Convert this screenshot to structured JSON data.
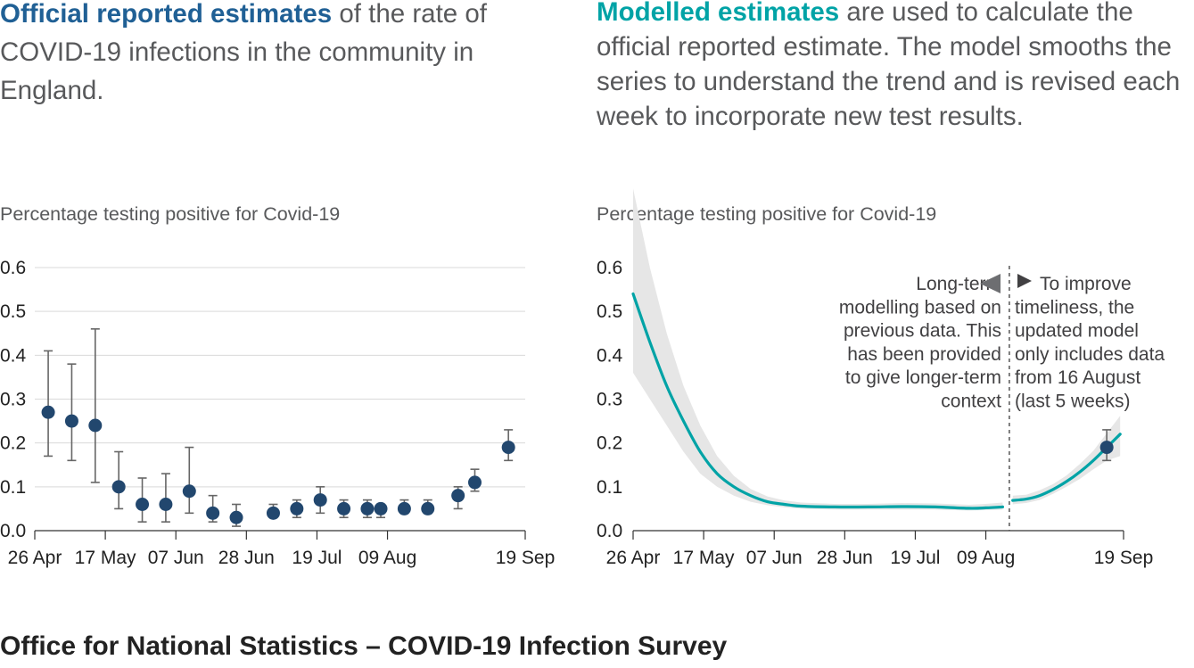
{
  "left_panel": {
    "title_lead": "Official reported estimates",
    "title_rest": " of the rate of COVID-19 infections in the community in England."
  },
  "right_panel": {
    "title_lead": "Modelled estimates",
    "title_rest": " are used to calculate the official reported estimate. The model smooths the series to understand the trend and is revised each week to incorporate new test results."
  },
  "footer": "Office for National Statistics – COVID-19 Infection Survey",
  "colors": {
    "official_blue": "#206095",
    "model_teal": "#00a3a6",
    "point_navy": "#22476e",
    "ci_grey": "#e6e6e6",
    "whisker": "#666666",
    "grid": "#d9d9d9"
  },
  "annotations": {
    "left_text": [
      "Long-term",
      "modelling based on",
      "previous data. This",
      "has been provided",
      "to give longer-term",
      "context"
    ],
    "right_text": [
      "To improve",
      "timeliness, the",
      "updated model",
      "only includes data",
      "from 16 August",
      "(last 5 weeks)"
    ],
    "left_arrow_icon": "triangle-left",
    "right_arrow_icon": "triangle-right"
  },
  "chart_data": [
    {
      "type": "scatter",
      "title": "",
      "ylabel": "Percentage testing positive for Covid-19",
      "xlabel": "",
      "ylim": [
        0,
        0.6
      ],
      "yticks": [
        0.0,
        0.1,
        0.2,
        0.3,
        0.4,
        0.5,
        0.6
      ],
      "xticks": [
        {
          "label": "26 Apr",
          "day": 0
        },
        {
          "label": "17 May",
          "day": 21
        },
        {
          "label": "07 Jun",
          "day": 42
        },
        {
          "label": "28 Jun",
          "day": 63
        },
        {
          "label": "19 Jul",
          "day": 84
        },
        {
          "label": "09 Aug",
          "day": 105
        },
        {
          "label": "19 Sep",
          "day": 146
        }
      ],
      "grid": true,
      "series": [
        {
          "points": [
            {
              "day": 4,
              "y": 0.27,
              "lo": 0.17,
              "hi": 0.41
            },
            {
              "day": 11,
              "y": 0.25,
              "lo": 0.16,
              "hi": 0.38
            },
            {
              "day": 18,
              "y": 0.24,
              "lo": 0.11,
              "hi": 0.46
            },
            {
              "day": 25,
              "y": 0.1,
              "lo": 0.05,
              "hi": 0.18
            },
            {
              "day": 32,
              "y": 0.06,
              "lo": 0.02,
              "hi": 0.12
            },
            {
              "day": 39,
              "y": 0.06,
              "lo": 0.02,
              "hi": 0.13
            },
            {
              "day": 46,
              "y": 0.09,
              "lo": 0.04,
              "hi": 0.19
            },
            {
              "day": 53,
              "y": 0.04,
              "lo": 0.02,
              "hi": 0.08
            },
            {
              "day": 60,
              "y": 0.03,
              "lo": 0.01,
              "hi": 0.06
            },
            {
              "day": 71,
              "y": 0.04,
              "lo": 0.03,
              "hi": 0.06
            },
            {
              "day": 78,
              "y": 0.05,
              "lo": 0.03,
              "hi": 0.07
            },
            {
              "day": 85,
              "y": 0.07,
              "lo": 0.04,
              "hi": 0.1
            },
            {
              "day": 92,
              "y": 0.05,
              "lo": 0.03,
              "hi": 0.07
            },
            {
              "day": 99,
              "y": 0.05,
              "lo": 0.03,
              "hi": 0.07
            },
            {
              "day": 103,
              "y": 0.05,
              "lo": 0.03,
              "hi": 0.06
            },
            {
              "day": 110,
              "y": 0.05,
              "lo": 0.04,
              "hi": 0.07
            },
            {
              "day": 117,
              "y": 0.05,
              "lo": 0.04,
              "hi": 0.07
            },
            {
              "day": 126,
              "y": 0.08,
              "lo": 0.05,
              "hi": 0.1
            },
            {
              "day": 131,
              "y": 0.11,
              "lo": 0.09,
              "hi": 0.14
            },
            {
              "day": 141,
              "y": 0.19,
              "lo": 0.16,
              "hi": 0.23
            }
          ]
        }
      ]
    },
    {
      "type": "line",
      "title": "",
      "ylabel": "Percentage testing positive for Covid-19",
      "xlabel": "",
      "ylim": [
        0,
        0.6
      ],
      "yticks": [
        0.0,
        0.1,
        0.2,
        0.3,
        0.4,
        0.5,
        0.6
      ],
      "xticks": [
        {
          "label": "26 Apr",
          "day": 0
        },
        {
          "label": "17 May",
          "day": 21
        },
        {
          "label": "07 Jun",
          "day": 42
        },
        {
          "label": "28 Jun",
          "day": 63
        },
        {
          "label": "19 Jul",
          "day": 84
        },
        {
          "label": "09 Aug",
          "day": 105
        },
        {
          "label": "19 Sep",
          "day": 146
        }
      ],
      "grid": false,
      "divider_day": 112,
      "series": [
        {
          "segment": "long-term",
          "day": [
            0,
            5,
            10,
            15,
            20,
            25,
            30,
            35,
            40,
            45,
            50,
            60,
            70,
            80,
            90,
            100,
            105,
            110
          ],
          "y": [
            0.54,
            0.43,
            0.33,
            0.25,
            0.18,
            0.13,
            0.1,
            0.08,
            0.066,
            0.06,
            0.056,
            0.054,
            0.054,
            0.055,
            0.054,
            0.051,
            0.052,
            0.054
          ],
          "lo": [
            0.36,
            0.3,
            0.24,
            0.18,
            0.13,
            0.1,
            0.08,
            0.066,
            0.058,
            0.053,
            0.05,
            0.048,
            0.048,
            0.048,
            0.048,
            0.046,
            0.047,
            0.048
          ],
          "hi": [
            0.78,
            0.6,
            0.45,
            0.33,
            0.24,
            0.17,
            0.125,
            0.095,
            0.078,
            0.069,
            0.064,
            0.061,
            0.061,
            0.063,
            0.062,
            0.059,
            0.061,
            0.064
          ]
        },
        {
          "segment": "updated",
          "day": [
            113,
            117,
            121,
            125,
            129,
            133,
            137,
            141,
            145
          ],
          "y": [
            0.069,
            0.072,
            0.08,
            0.094,
            0.112,
            0.134,
            0.16,
            0.19,
            0.22
          ],
          "lo": [
            0.06,
            0.063,
            0.07,
            0.084,
            0.1,
            0.118,
            0.14,
            0.16,
            0.17
          ],
          "hi": [
            0.08,
            0.082,
            0.092,
            0.106,
            0.126,
            0.152,
            0.182,
            0.222,
            0.262
          ]
        }
      ],
      "point": {
        "day": 141,
        "y": 0.19,
        "lo": 0.16,
        "hi": 0.23
      }
    }
  ]
}
